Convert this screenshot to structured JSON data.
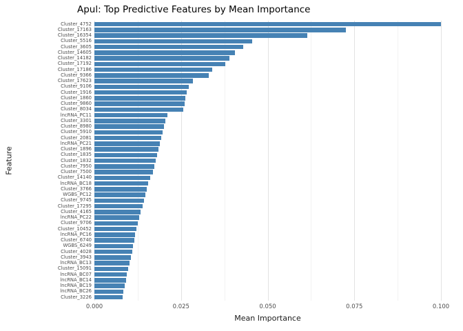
{
  "chart_data": {
    "type": "bar",
    "orientation": "horizontal",
    "title": "Apul: Top Predictive Features by Mean Importance",
    "xlabel": "Mean Importance",
    "ylabel": "Feature",
    "xlim": [
      0,
      0.1052
    ],
    "xticks": [
      0.0,
      0.025,
      0.05,
      0.075,
      0.1
    ],
    "xtick_labels": [
      "0.000",
      "0.025",
      "0.050",
      "0.075",
      "0.100"
    ],
    "xticks_minor": [
      0.0125,
      0.0375,
      0.0625,
      0.0875
    ],
    "grid": true,
    "legend": "none",
    "bar_color": "#4682B4",
    "axis_text_color": "#4d4d4d",
    "categories": [
      "Cluster_4752",
      "Cluster_17163",
      "Cluster_16354",
      "Cluster_5516",
      "Cluster_3605",
      "Cluster_14605",
      "Cluster_14182",
      "Cluster_17192",
      "Cluster_17186",
      "Cluster_9366",
      "Cluster_17623",
      "Cluster_9106",
      "Cluster_1916",
      "Cluster_1860",
      "Cluster_9860",
      "Cluster_8034",
      "lncRNA_PC11",
      "Cluster_3301",
      "Cluster_8980",
      "Cluster_5910",
      "Cluster_2081",
      "lncRNA_PC21",
      "Cluster_1896",
      "Cluster_1835",
      "Cluster_1832",
      "Cluster_7950",
      "Cluster_7500",
      "Cluster_14140",
      "lncRNA_BC18",
      "Cluster_3766",
      "WGBS_PC12",
      "Cluster_9745",
      "Cluster_17295",
      "Cluster_4165",
      "lncRNA_PC22",
      "Cluster_9706",
      "Cluster_10452",
      "lncRNA_PC16",
      "Cluster_6740",
      "WGBS_6249",
      "Cluster_4028",
      "Cluster_3943",
      "lncRNA_BC13",
      "Cluster_15091",
      "lncRNA_BC07",
      "lncRNA_BC14",
      "lncRNA_BC19",
      "lncRNA_BC26",
      "Cluster_3226"
    ],
    "values": [
      0.1,
      0.0725,
      0.0615,
      0.0455,
      0.043,
      0.0405,
      0.039,
      0.0378,
      0.034,
      0.033,
      0.0285,
      0.0272,
      0.0266,
      0.0262,
      0.026,
      0.0256,
      0.021,
      0.0205,
      0.02,
      0.0196,
      0.0192,
      0.0188,
      0.0184,
      0.018,
      0.0176,
      0.0172,
      0.0168,
      0.0161,
      0.0156,
      0.0151,
      0.0147,
      0.0143,
      0.0139,
      0.0134,
      0.0129,
      0.0125,
      0.0121,
      0.0118,
      0.0115,
      0.0112,
      0.0109,
      0.0106,
      0.0101,
      0.0097,
      0.0094,
      0.0091,
      0.0088,
      0.0084,
      0.0081
    ]
  }
}
